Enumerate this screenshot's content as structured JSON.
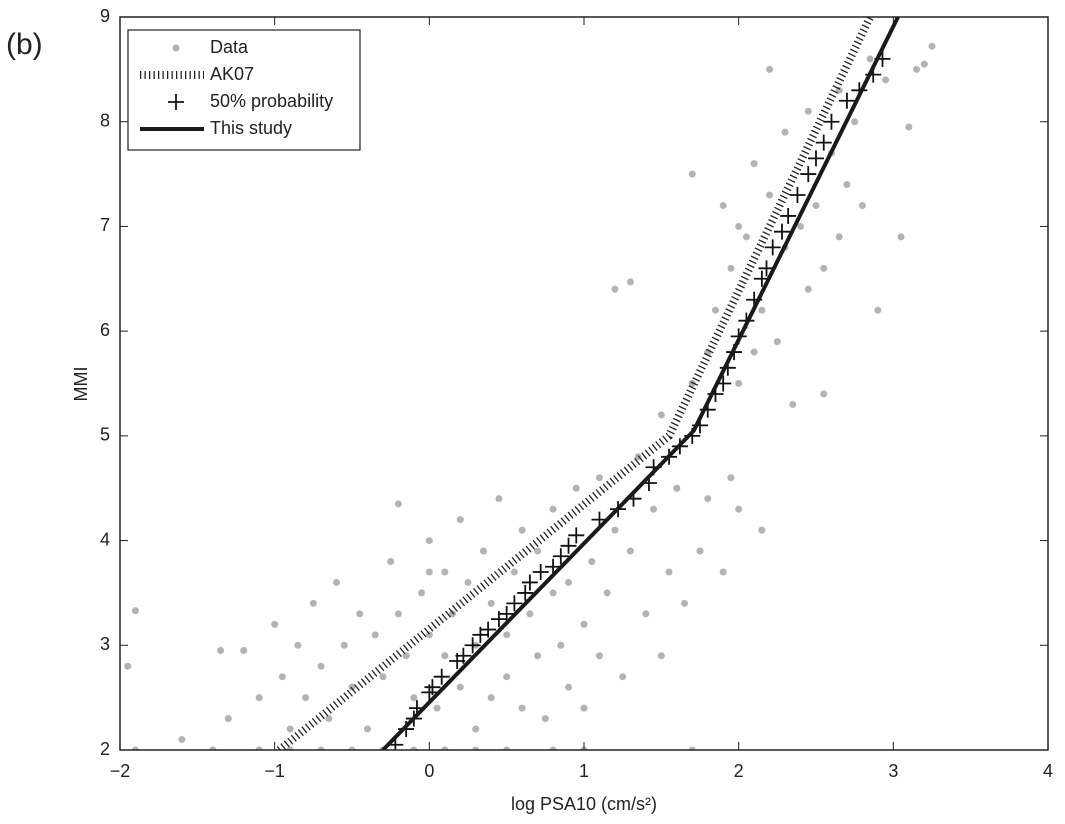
{
  "chart_data": {
    "type": "scatter",
    "annotation": "(b)",
    "x_label": "log PSA10 (cm/s²)",
    "y_label": "MMI",
    "xlim": [
      -2,
      4
    ],
    "ylim": [
      2,
      9
    ],
    "xticks": [
      {
        "value": -2,
        "label": "−2"
      },
      {
        "value": -1,
        "label": "−1"
      },
      0,
      1,
      2,
      3,
      4
    ],
    "yticks": [
      2,
      3,
      4,
      5,
      6,
      7,
      8,
      9
    ],
    "legend": "upper left",
    "series": [
      {
        "name": "Data",
        "color": "#b3b3b3",
        "style": "points",
        "x": [
          -1.1,
          -0.9,
          -0.7,
          -0.5,
          -0.3,
          -0.1,
          0.1,
          0.3,
          0.5,
          0.8,
          1.0,
          -1.4,
          -1.9,
          -1.95,
          -1.9,
          -1.6,
          -1.35,
          -1.3,
          -1.2,
          -1.1,
          -1.0,
          -0.95,
          -0.9,
          -0.85,
          -0.8,
          -0.75,
          -0.7,
          -0.65,
          -0.6,
          -0.55,
          -0.5,
          -0.45,
          -0.4,
          -0.35,
          -0.3,
          -0.25,
          -0.2,
          -0.15,
          -0.1,
          -0.05,
          0,
          0,
          0.05,
          0.1,
          0.1,
          0.15,
          0.2,
          0.2,
          0.25,
          0.3,
          0.3,
          0.35,
          0.4,
          0.4,
          0.45,
          0.5,
          0.5,
          0.55,
          0.6,
          0.6,
          0.65,
          0.7,
          0.7,
          0.75,
          0.8,
          0.8,
          0.85,
          0.9,
          0.9,
          0.95,
          1.0,
          1.0,
          1.05,
          1.1,
          1.1,
          1.15,
          1.2,
          1.2,
          1.25,
          1.3,
          1.3,
          1.35,
          1.4,
          1.45,
          1.5,
          1.5,
          1.55,
          1.6,
          1.65,
          1.7,
          1.7,
          1.75,
          1.8,
          1.8,
          1.85,
          1.9,
          1.9,
          1.95,
          1.95,
          2.0,
          2.0,
          2.0,
          2.05,
          2.1,
          2.1,
          2.15,
          2.15,
          2.2,
          2.2,
          2.25,
          2.3,
          2.3,
          2.35,
          2.4,
          2.45,
          2.45,
          2.5,
          2.55,
          2.55,
          2.6,
          2.65,
          2.65,
          2.7,
          2.75,
          2.8,
          2.85,
          2.9,
          2.95,
          3.05,
          3.15,
          3.2,
          3.25,
          3.1,
          -0.2,
          1.7,
          0.0
        ],
        "y": [
          2,
          2,
          2,
          2,
          2,
          2,
          2,
          2,
          2,
          2,
          2,
          2,
          2,
          2.8,
          3.33,
          2.1,
          2.95,
          2.3,
          2.95,
          2.5,
          3.2,
          2.7,
          2.2,
          3.0,
          2.5,
          3.4,
          2.8,
          2.3,
          3.6,
          3.0,
          2.6,
          3.3,
          2.2,
          3.1,
          2.7,
          3.8,
          3.3,
          2.9,
          2.5,
          3.5,
          3.1,
          4.0,
          2.4,
          3.7,
          2.9,
          3.3,
          2.6,
          4.2,
          3.6,
          2.2,
          3.0,
          3.9,
          3.4,
          2.5,
          4.4,
          3.1,
          2.7,
          3.7,
          2.4,
          4.1,
          3.3,
          2.9,
          3.9,
          2.3,
          3.5,
          4.3,
          3.0,
          2.6,
          3.6,
          4.5,
          3.2,
          2.4,
          3.8,
          4.6,
          2.9,
          3.5,
          4.1,
          6.4,
          2.7,
          3.9,
          6.47,
          4.8,
          3.3,
          4.3,
          2.9,
          5.2,
          3.7,
          4.5,
          3.4,
          5.5,
          7.5,
          3.9,
          5.8,
          4.4,
          6.2,
          3.7,
          7.2,
          4.6,
          6.6,
          5.5,
          7.0,
          4.3,
          6.9,
          5.8,
          7.6,
          6.2,
          4.1,
          7.3,
          8.5,
          5.9,
          6.8,
          7.9,
          5.3,
          7.0,
          6.4,
          8.1,
          7.2,
          6.6,
          5.4,
          7.7,
          8.3,
          6.9,
          7.4,
          8.0,
          7.2,
          8.6,
          6.2,
          8.4,
          6.9,
          8.5,
          8.55,
          8.72,
          7.95,
          4.35,
          2.0,
          3.7
        ]
      },
      {
        "name": "AK07",
        "color": "#222222",
        "style": "dotted-line",
        "x": [
          -0.97,
          1.55,
          2.85
        ],
        "y": [
          2,
          5,
          9
        ]
      },
      {
        "name": "50% probability",
        "color": "#111111",
        "style": "plus",
        "x": [
          -0.22,
          -0.15,
          -0.1,
          -0.08,
          0,
          0.02,
          0.08,
          0.18,
          0.22,
          0.28,
          0.33,
          0.38,
          0.45,
          0.5,
          0.55,
          0.62,
          0.65,
          0.72,
          0.8,
          0.85,
          0.9,
          0.95,
          1.1,
          1.22,
          1.32,
          1.42,
          1.45,
          1.55,
          1.62,
          1.7,
          1.75,
          1.8,
          1.85,
          1.9,
          1.93,
          1.97,
          2.0,
          2.05,
          2.1,
          2.15,
          2.18,
          2.22,
          2.28,
          2.32,
          2.38,
          2.45,
          2.5,
          2.55,
          2.6,
          2.7,
          2.78,
          2.87,
          2.93
        ],
        "y": [
          2.05,
          2.2,
          2.3,
          2.4,
          2.55,
          2.6,
          2.7,
          2.85,
          2.9,
          3.0,
          3.1,
          3.15,
          3.25,
          3.3,
          3.4,
          3.5,
          3.6,
          3.7,
          3.75,
          3.85,
          3.95,
          4.05,
          4.2,
          4.3,
          4.4,
          4.55,
          4.7,
          4.8,
          4.9,
          5.0,
          5.1,
          5.25,
          5.4,
          5.5,
          5.65,
          5.8,
          5.95,
          6.1,
          6.3,
          6.5,
          6.6,
          6.8,
          6.95,
          7.1,
          7.3,
          7.5,
          7.65,
          7.8,
          8.0,
          8.2,
          8.3,
          8.45,
          8.6
        ]
      },
      {
        "name": "This study",
        "color": "#1a1a1a",
        "style": "line",
        "x": [
          -0.3,
          1.71,
          3.03
        ],
        "y": [
          2,
          5.05,
          9
        ]
      }
    ]
  }
}
